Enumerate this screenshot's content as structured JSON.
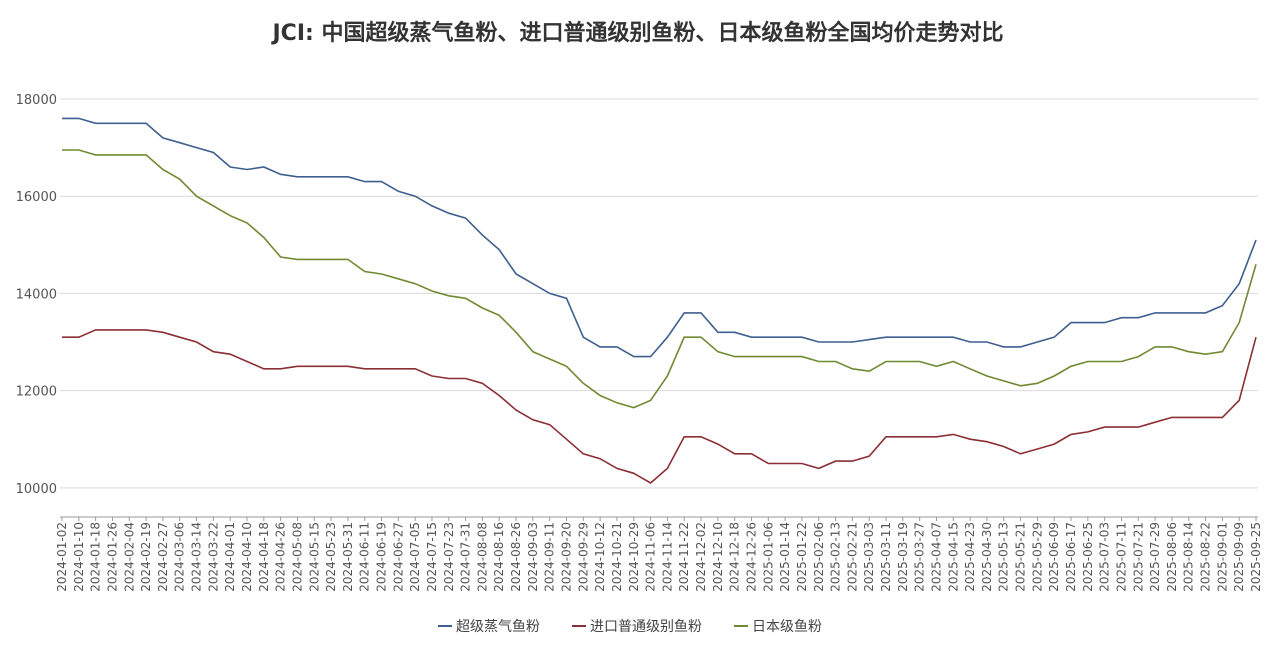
{
  "chart_data": {
    "type": "line",
    "title": "JCI: 中国超级蒸气鱼粉、进口普通级别鱼粉、日本级鱼粉全国均价走势对比",
    "categories": [
      "2024-01-02",
      "2024-01-10",
      "2024-01-18",
      "2024-01-26",
      "2024-02-04",
      "2024-02-19",
      "2024-02-27",
      "2024-03-06",
      "2024-03-14",
      "2024-03-22",
      "2024-04-01",
      "2024-04-10",
      "2024-04-18",
      "2024-04-26",
      "2024-05-08",
      "2024-05-15",
      "2024-05-23",
      "2024-05-31",
      "2024-06-11",
      "2024-06-19",
      "2024-06-27",
      "2024-07-05",
      "2024-07-15",
      "2024-07-23",
      "2024-07-31",
      "2024-08-08",
      "2024-08-16",
      "2024-08-26",
      "2024-09-03",
      "2024-09-11",
      "2024-09-20",
      "2024-09-29",
      "2024-10-12",
      "2024-10-21",
      "2024-10-29",
      "2024-11-06",
      "2024-11-14",
      "2024-11-22",
      "2024-12-02",
      "2024-12-10",
      "2024-12-18",
      "2024-12-26",
      "2025-01-06",
      "2025-01-14",
      "2025-01-22",
      "2025-02-06",
      "2025-02-13",
      "2025-02-21",
      "2025-03-03",
      "2025-03-11",
      "2025-03-19",
      "2025-03-27",
      "2025-04-07",
      "2025-04-15",
      "2025-04-23",
      "2025-04-30",
      "2025-05-13",
      "2025-05-21",
      "2025-05-29",
      "2025-06-09",
      "2025-06-17",
      "2025-06-25",
      "2025-07-03",
      "2025-07-11",
      "2025-07-21",
      "2025-07-29",
      "2025-08-06",
      "2025-08-14",
      "2025-08-22",
      "2025-09-01",
      "2025-09-09",
      "2025-09-25"
    ],
    "series": [
      {
        "name": "超级蒸气鱼粉",
        "color": "#3f5f8f",
        "values": [
          17600,
          17600,
          17500,
          17500,
          17500,
          17500,
          17200,
          17100,
          17000,
          16900,
          16600,
          16550,
          16600,
          16450,
          16400,
          16400,
          16400,
          16400,
          16300,
          16300,
          16100,
          16000,
          15800,
          15650,
          15550,
          15200,
          14900,
          14400,
          14200,
          14000,
          13900,
          13100,
          12900,
          12900,
          12700,
          12700,
          13100,
          13600,
          13600,
          13200,
          13200,
          13100,
          13100,
          13100,
          13100,
          13000,
          13000,
          13000,
          13050,
          13100,
          13100,
          13100,
          13100,
          13100,
          13000,
          13000,
          12900,
          12900,
          13000,
          13100,
          13400,
          13400,
          13400,
          13500,
          13500,
          13600,
          13600,
          13600,
          13600,
          13750,
          14200,
          15100
        ]
      },
      {
        "name": "进口普通级别鱼粉",
        "color": "#8b2f35",
        "values": [
          13100,
          13100,
          13250,
          13250,
          13250,
          13250,
          13200,
          13100,
          13000,
          12800,
          12750,
          12600,
          12450,
          12450,
          12500,
          12500,
          12500,
          12500,
          12450,
          12450,
          12450,
          12450,
          12300,
          12250,
          12250,
          12150,
          11900,
          11600,
          11400,
          11300,
          11000,
          10700,
          10600,
          10400,
          10300,
          10100,
          10400,
          11050,
          11050,
          10900,
          10700,
          10700,
          10500,
          10500,
          10500,
          10400,
          10550,
          10550,
          10650,
          11050,
          11050,
          11050,
          11050,
          11100,
          11000,
          10950,
          10850,
          10700,
          10800,
          10900,
          11100,
          11150,
          11250,
          11250,
          11250,
          11350,
          11450,
          11450,
          11450,
          11450,
          11800,
          13100
        ]
      },
      {
        "name": "日本级鱼粉",
        "color": "#6f8a32",
        "values": [
          16950,
          16950,
          16850,
          16850,
          16850,
          16850,
          16550,
          16350,
          16000,
          15800,
          15600,
          15450,
          15150,
          14750,
          14700,
          14700,
          14700,
          14700,
          14450,
          14400,
          14300,
          14200,
          14050,
          13950,
          13900,
          13700,
          13550,
          13200,
          12800,
          12650,
          12500,
          12150,
          11900,
          11750,
          11650,
          11800,
          12300,
          13100,
          13100,
          12800,
          12700,
          12700,
          12700,
          12700,
          12700,
          12600,
          12600,
          12450,
          12400,
          12600,
          12600,
          12600,
          12500,
          12600,
          12450,
          12300,
          12200,
          12100,
          12150,
          12300,
          12500,
          12600,
          12600,
          12600,
          12700,
          12900,
          12900,
          12800,
          12750,
          12800,
          13400,
          14600
        ]
      }
    ],
    "ylim": [
      9400,
      18000
    ],
    "yticks": [
      10000,
      12000,
      14000,
      16000,
      18000
    ],
    "grid": true,
    "legend": "bottom"
  }
}
